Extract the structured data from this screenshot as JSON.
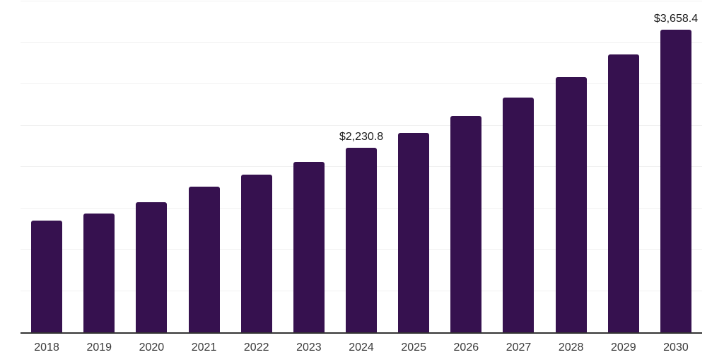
{
  "chart_data": {
    "type": "bar",
    "title": "",
    "xlabel": "",
    "ylabel": "",
    "categories": [
      "2018",
      "2019",
      "2020",
      "2021",
      "2022",
      "2023",
      "2024",
      "2025",
      "2026",
      "2027",
      "2028",
      "2029",
      "2030"
    ],
    "values": [
      1347,
      1437,
      1571,
      1759,
      1903,
      2063,
      2230.8,
      2409,
      2616,
      2838,
      3085,
      3357,
      3658.4
    ],
    "data_labels": [
      {
        "category": "2024",
        "text": "$2,230.8"
      },
      {
        "category": "2030",
        "text": "$3,658.4"
      }
    ],
    "ylim": [
      0,
      4000
    ],
    "gridline_step": 500,
    "grid": "horizontal",
    "legend": "none",
    "y_axis_labels_visible": false,
    "colors": {
      "bar": "#36114F",
      "axis_line": "#333333",
      "gridline": "#f1f1f1",
      "tick_label": "#3a3a3a",
      "data_label": "#1a1a1a",
      "background": "#ffffff"
    }
  }
}
